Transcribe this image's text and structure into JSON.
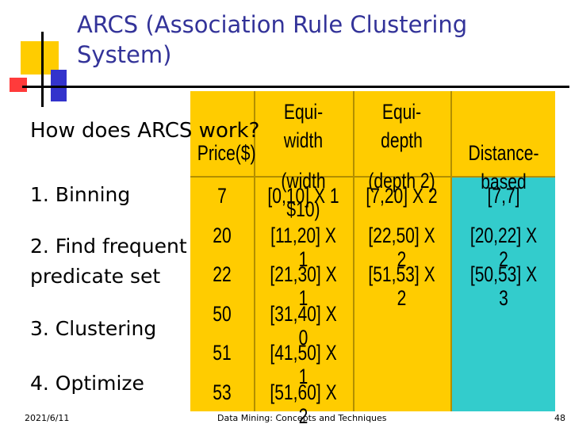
{
  "slide": {
    "title": "ARCS (Association Rule Clustering System)",
    "heading": "How does ARCS work?",
    "bullets": [
      "1. Binning",
      "2. Find frequent predicate set",
      "3. Clustering",
      "4. Optimize"
    ]
  },
  "table": {
    "headers": {
      "price": [
        "Price($)"
      ],
      "equi_width": [
        "Equi-width",
        "(width $10)"
      ],
      "equi_depth": [
        "Equi-depth",
        "(depth 2)"
      ],
      "distance": [
        "Distance-based"
      ]
    },
    "price": [
      "7",
      "20",
      "22",
      "50",
      "51",
      "53"
    ],
    "equi_width": [
      "[0,10] X 1",
      "[11,20] X 1",
      "[21,30] X 1",
      "[31,40] X 0",
      "[41,50] X 1",
      "[51,60] X 2"
    ],
    "equi_depth": [
      "[7,20] X 2",
      "[22,50] X 2",
      "[51,53] X 2"
    ],
    "distance": [
      "[7,7]",
      "[20,22] X 2",
      "[50,53] X 3"
    ],
    "colors": {
      "yellow": "#ffcc00",
      "teal": "#33cccc"
    }
  },
  "footer": {
    "date": "2021/6/11",
    "center": "Data Mining: Concepts and Techniques",
    "page": "48"
  }
}
